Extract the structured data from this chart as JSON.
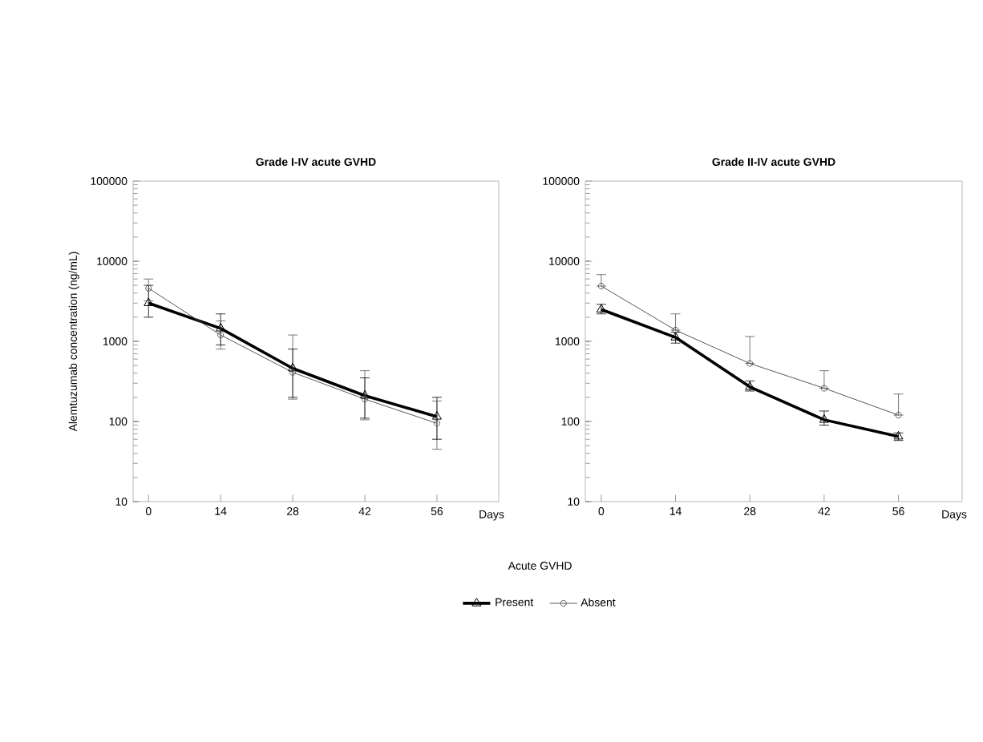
{
  "chart_data": [
    {
      "type": "line",
      "title": "Grade I-IV acute GVHD",
      "xlabel": "Days",
      "ylabel": "Alemtuzumab concentration (ng/mL)",
      "x": [
        0,
        14,
        28,
        42,
        56
      ],
      "log": "y",
      "xlim": [
        -3,
        68
      ],
      "ylim": [
        10,
        100000
      ],
      "xticks": [
        0,
        14,
        28,
        42,
        56
      ],
      "yticks": [
        10,
        100,
        1000,
        10000,
        100000
      ],
      "grid": false,
      "legend": false,
      "series": [
        {
          "color": "#000000",
          "marker": "triangle",
          "values": [
            3000,
            1450,
            460,
            210,
            115
          ],
          "errors": [
            [
              2000,
              5000
            ],
            [
              900,
              2200
            ],
            [
              200,
              800
            ],
            [
              110,
              350
            ],
            [
              60,
              200
            ]
          ]
        },
        {
          "color": "#555555",
          "marker": "circle",
          "values": [
            4600,
            1200,
            410,
            190,
            95
          ],
          "errors": [
            [
              3200,
              6000
            ],
            [
              800,
              1800
            ],
            [
              190,
              1200
            ],
            [
              105,
              430
            ],
            [
              45,
              180
            ]
          ]
        }
      ]
    },
    {
      "type": "line",
      "title": "Grade II-IV acute GVHD",
      "xlabel": "Days",
      "legend_title": "Acute GVHD",
      "x": [
        0,
        14,
        28,
        42,
        56
      ],
      "log": "y",
      "xlim": [
        -3,
        68
      ],
      "ylim": [
        10,
        100000
      ],
      "xticks": [
        0,
        14,
        28,
        42,
        56
      ],
      "yticks": [
        10,
        100,
        1000,
        10000,
        100000
      ],
      "grid": false,
      "legend": "bottom",
      "series": [
        {
          "name": "Present",
          "color": "#000000",
          "marker": "triangle",
          "values": [
            2500,
            1120,
            270,
            105,
            65
          ],
          "errors": [
            [
              2200,
              2900
            ],
            [
              950,
              1300
            ],
            [
              240,
              320
            ],
            [
              90,
              135
            ],
            [
              58,
              72
            ]
          ]
        },
        {
          "name": "Absent",
          "color": "#555555",
          "marker": "circle",
          "values": [
            4900,
            1380,
            530,
            260,
            120
          ],
          "errors": [
            [
              4900,
              6800
            ],
            [
              1380,
              2200
            ],
            [
              530,
              1150
            ],
            [
              260,
              430
            ],
            [
              120,
              220
            ]
          ]
        }
      ]
    }
  ]
}
